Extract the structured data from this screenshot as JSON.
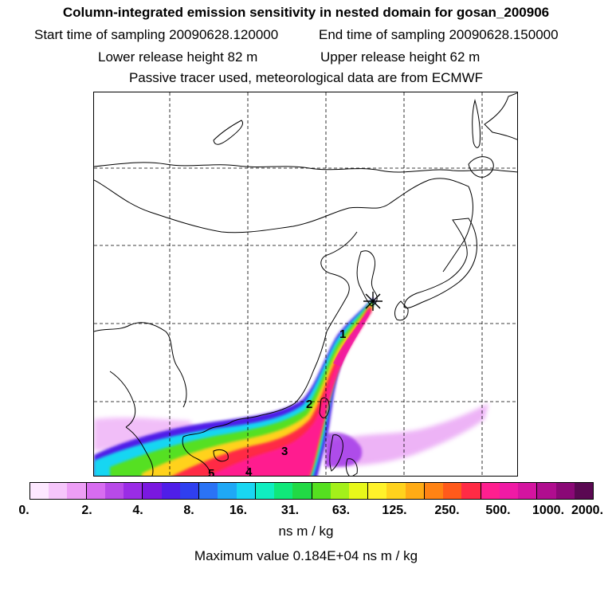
{
  "header": {
    "title": "Column-integrated emission sensitivity in nested domain for gosan_200906",
    "start_label": "Start time of sampling 20090628.120000",
    "end_label": "End time of sampling 20090628.150000",
    "lower_label": "Lower release height   82 m",
    "upper_label": "Upper release height   62 m",
    "note": "Passive tracer used, meteorological data are from ECMWF"
  },
  "map": {
    "day_labels": [
      "1",
      "2",
      "3",
      "4",
      "5"
    ],
    "receptor_marker": "star-icon"
  },
  "colorbar": {
    "colors": [
      "#fde8ff",
      "#f6c6fb",
      "#ed9ef6",
      "#d76cf0",
      "#b84ae8",
      "#9a2ce6",
      "#7a18e0",
      "#4f1ee8",
      "#2f3ff0",
      "#2b73f5",
      "#1fa8f6",
      "#19d6f2",
      "#10eec0",
      "#10e87a",
      "#21d945",
      "#55e020",
      "#a4f01a",
      "#e8f81a",
      "#fff22a",
      "#ffd21d",
      "#ffab15",
      "#ff8314",
      "#ff5a1b",
      "#ff2b45",
      "#ff1f8f",
      "#f01aa5",
      "#d414a0",
      "#b00d8f",
      "#8a0876",
      "#5a0852"
    ],
    "tick_labels": [
      "0.",
      "2.",
      "4.",
      "8.",
      "16.",
      "31.",
      "63.",
      "125.",
      "250.",
      "500.",
      "1000.",
      "2000."
    ],
    "units": "ns m / kg",
    "max_value": "Maximum value  0.184E+04 ns m / kg"
  }
}
